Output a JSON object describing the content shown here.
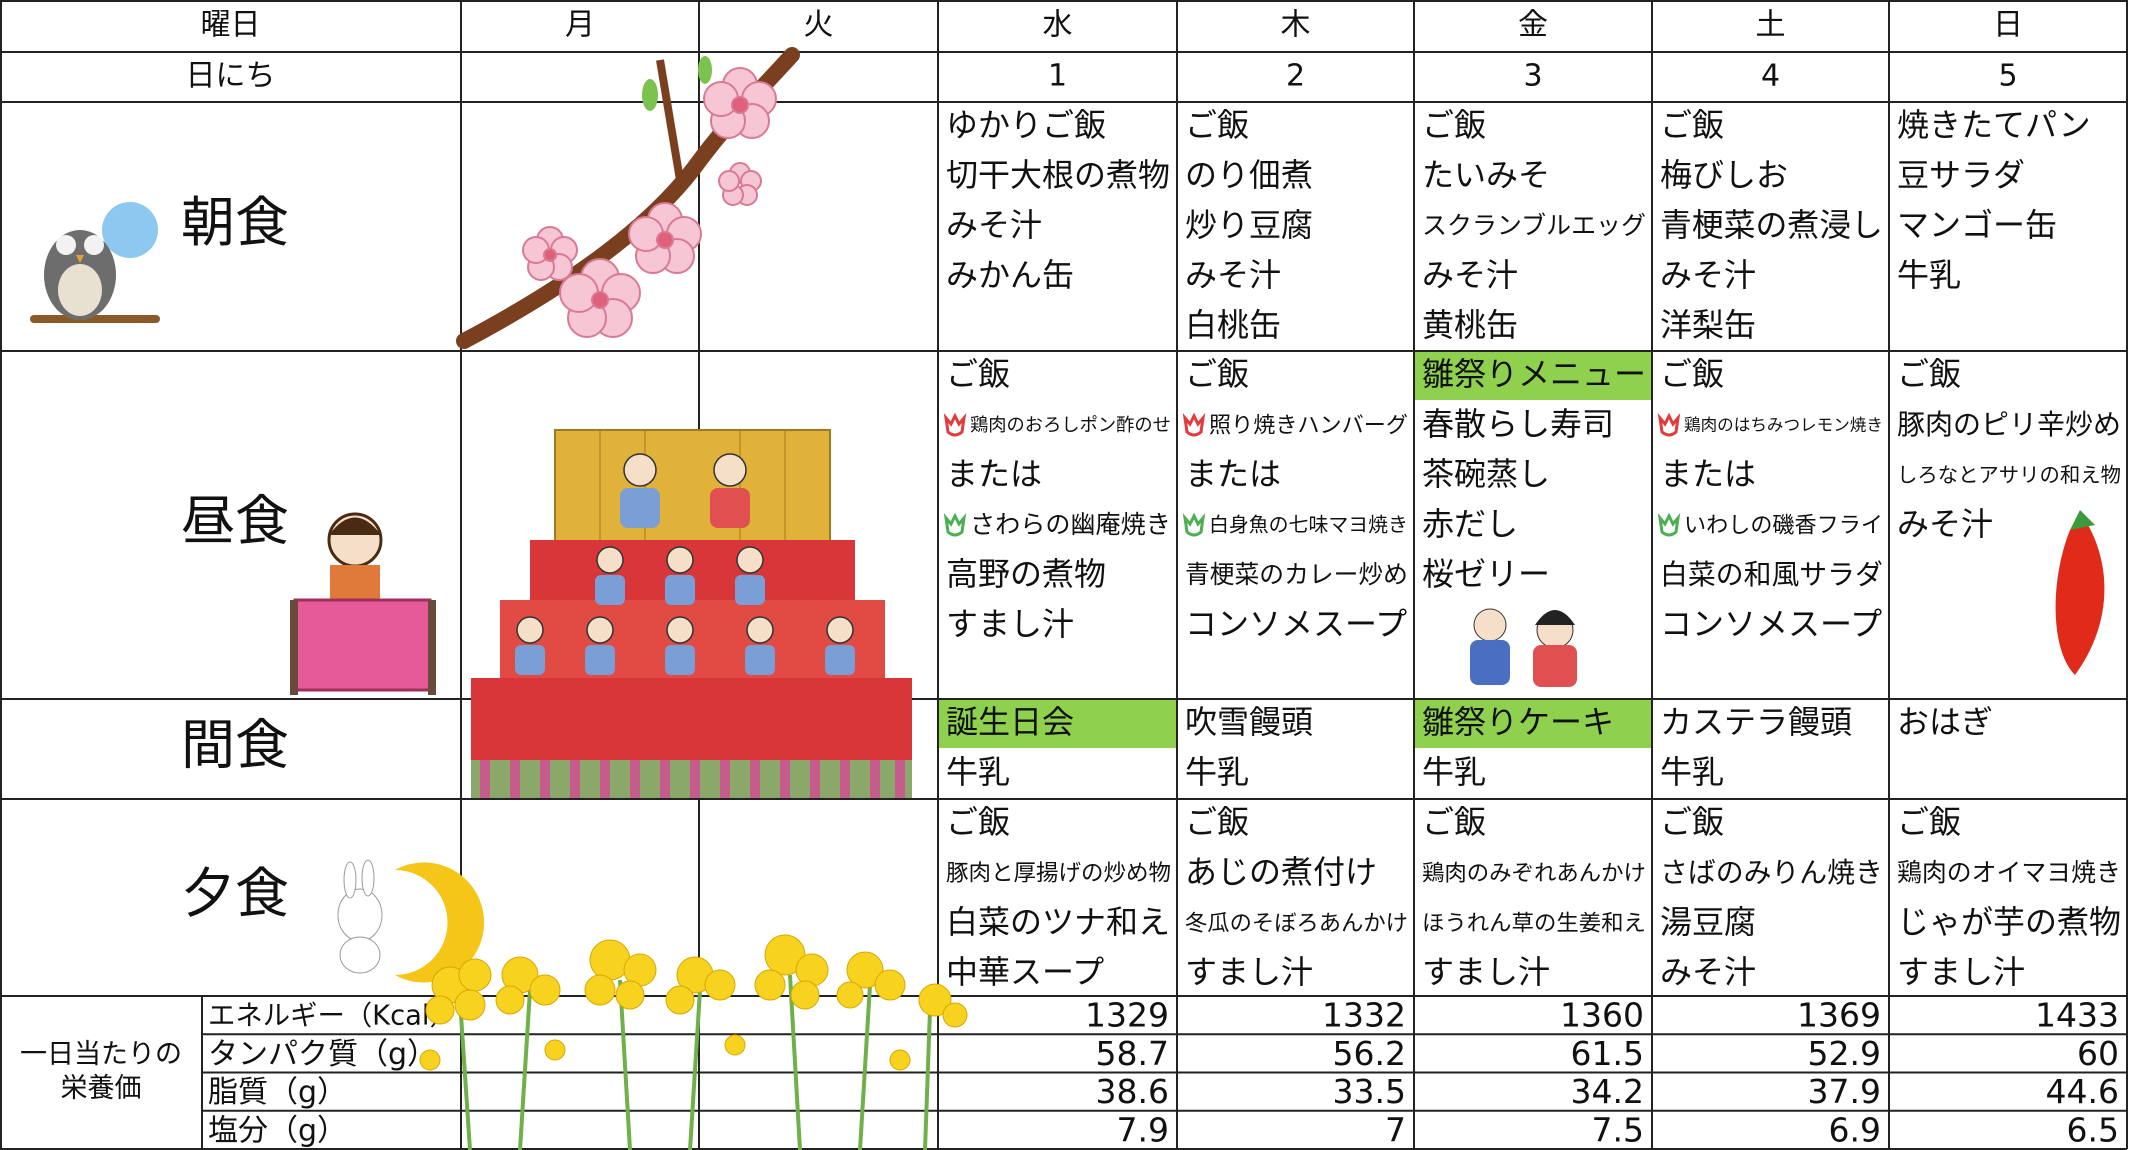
{
  "table": {
    "header": {
      "label": "曜日",
      "days": [
        "月",
        "火",
        "水",
        "木",
        "金",
        "土",
        "日"
      ]
    },
    "dates": {
      "label": "日にち",
      "values": [
        1,
        2,
        3,
        4,
        5
      ]
    },
    "meals": [
      {
        "label": "朝食",
        "days": [
          [
            "ゆかりご飯",
            "切干大根の煮物",
            "みそ汁",
            "みかん缶"
          ],
          [
            "ご飯",
            "のり佃煮",
            "炒り豆腐",
            "みそ汁",
            "白桃缶"
          ],
          [
            "ご飯",
            "たいみそ",
            "スクランブルエッグ",
            "みそ汁",
            "黄桃缶"
          ],
          [
            "ご飯",
            "梅びしお",
            "青梗菜の煮浸し",
            "みそ汁",
            "洋梨缶"
          ],
          [
            "焼きたてパン",
            "豆サラダ",
            "マンゴー缶",
            "牛乳"
          ]
        ]
      },
      {
        "label": "昼食",
        "days": [
          [
            "ご飯",
            {
              "text": "鶏肉のおろしポン酢のせ",
              "icon": "#e23b3b"
            },
            "または",
            {
              "text": "さわらの幽庵焼き",
              "icon": "#4caf50"
            },
            "高野の煮物",
            "すまし汁"
          ],
          [
            "ご飯",
            {
              "text": "照り焼きハンバーグ",
              "icon": "#e23b3b"
            },
            "または",
            {
              "text": "白身魚の七味マヨ焼き",
              "icon": "#4caf50"
            },
            "青梗菜のカレー炒め",
            "コンソメスープ"
          ],
          [
            {
              "text": "雛祭りメニュー",
              "highlight": "#8fd14f"
            },
            "春散らし寿司",
            "茶碗蒸し",
            "赤だし",
            "桜ゼリー"
          ],
          [
            "ご飯",
            {
              "text": "鶏肉のはちみつレモン焼き",
              "icon": "#e23b3b"
            },
            "または",
            {
              "text": "いわしの磯香フライ",
              "icon": "#4caf50"
            },
            "白菜の和風サラダ",
            "コンソメスープ"
          ],
          [
            "ご飯",
            "豚肉のピリ辛炒め",
            "しろなとアサリの和え物",
            "みそ汁"
          ]
        ]
      },
      {
        "label": "間食",
        "days": [
          [
            {
              "text": "誕生日会",
              "highlight": "#8fd14f"
            },
            "牛乳"
          ],
          [
            "吹雪饅頭",
            "牛乳"
          ],
          [
            {
              "text": "雛祭りケーキ",
              "highlight": "#8fd14f"
            },
            "牛乳"
          ],
          [
            "カステラ饅頭",
            "牛乳"
          ],
          [
            "おはぎ"
          ]
        ]
      },
      {
        "label": "夕食",
        "days": [
          [
            "ご飯",
            "豚肉と厚揚げの炒め物",
            "白菜のツナ和え",
            "中華スープ"
          ],
          [
            "ご飯",
            "あじの煮付け",
            "冬瓜のそぼろあんかけ",
            "すまし汁"
          ],
          [
            "ご飯",
            "鶏肉のみぞれあんかけ",
            "ほうれん草の生姜和え",
            "すまし汁"
          ],
          [
            "ご飯",
            "さばのみりん焼き",
            "湯豆腐",
            "みそ汁"
          ],
          [
            "ご飯",
            "鶏肉のオイマヨ焼き",
            "じゃが芋の煮物",
            "すまし汁"
          ]
        ]
      }
    ],
    "nutrition": {
      "label": [
        "一日当たりの",
        "栄養価"
      ],
      "rows": [
        {
          "name": "エネルギー（Kcal）",
          "values": [
            1329,
            1332,
            1360,
            1369,
            1433
          ]
        },
        {
          "name": "タンパク質（g）",
          "values": [
            58.7,
            56.2,
            61.5,
            52.9,
            60
          ]
        },
        {
          "name": "脂質（g）",
          "values": [
            38.6,
            33.5,
            34.2,
            37.9,
            44.6
          ]
        },
        {
          "name": "塩分（g）",
          "values": [
            7.9,
            7,
            7.5,
            6.9,
            6.5
          ]
        }
      ]
    }
  }
}
